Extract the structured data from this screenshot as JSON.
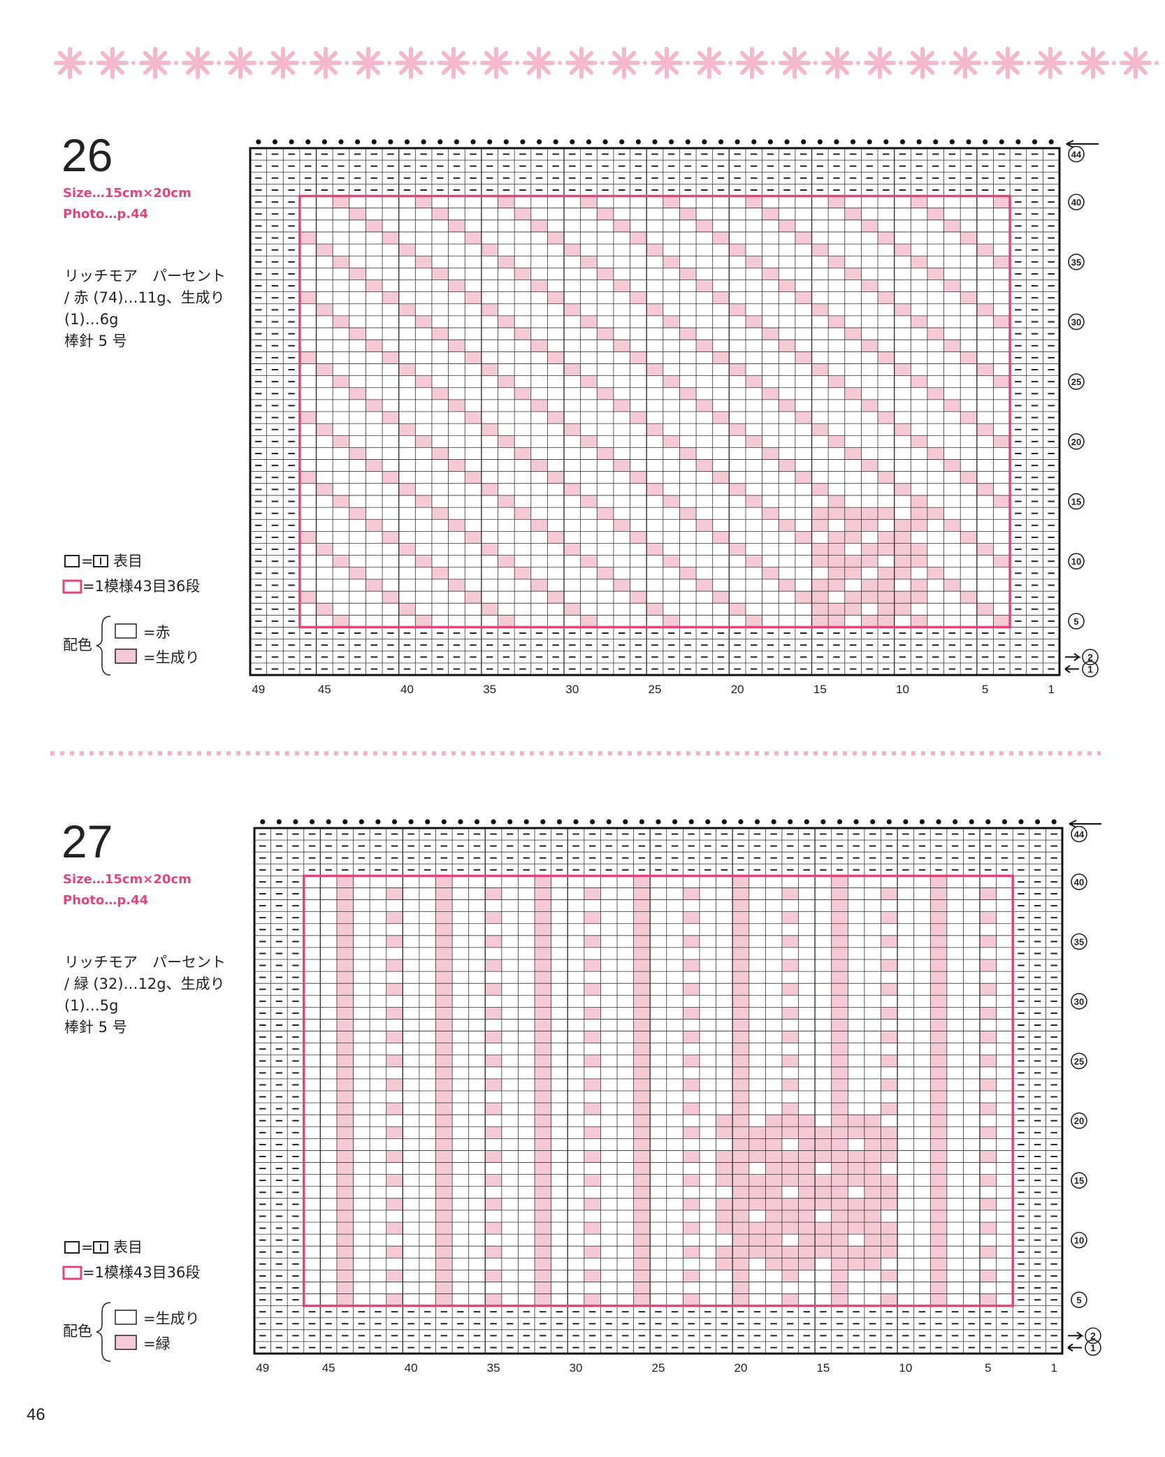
{
  "charts": [
    {
      "number": "26",
      "size": "Size…15cm×20cm",
      "photo": "Photo…p.44",
      "yarn": [
        "リッチモア　パーセント",
        "/ 赤 (74)…11g、生成り",
        "(1)…6g",
        "棒針 5 号"
      ],
      "legend_knit": "表目",
      "legend_repeat": "=1模様43目36段",
      "color_label": "配色",
      "color_a": "=赤",
      "color_b": "=生成り",
      "col_labels": [
        "49",
        "45",
        "40",
        "35",
        "30",
        "25",
        "20",
        "15",
        "10",
        "5",
        "1"
      ],
      "row_labels": [
        "44",
        "40",
        "35",
        "30",
        "25",
        "20",
        "15",
        "10",
        "5"
      ],
      "arrow_rows": [
        "2",
        "1"
      ]
    },
    {
      "number": "27",
      "size": "Size…15cm×20cm",
      "photo": "Photo…p.44",
      "yarn": [
        "リッチモア　パーセント",
        "/ 緑 (32)…12g、生成り",
        "(1)…5g",
        "棒針 5 号"
      ],
      "legend_knit": "表目",
      "legend_repeat": "=1模様43目36段",
      "color_label": "配色",
      "color_a": "=生成り",
      "color_b": "=緑",
      "col_labels": [
        "49",
        "45",
        "40",
        "35",
        "30",
        "25",
        "20",
        "15",
        "10",
        "5",
        "1"
      ],
      "row_labels": [
        "44",
        "40",
        "35",
        "30",
        "25",
        "20",
        "15",
        "10",
        "5"
      ],
      "arrow_rows": [
        "2",
        "1"
      ]
    }
  ],
  "page_number": "46"
}
